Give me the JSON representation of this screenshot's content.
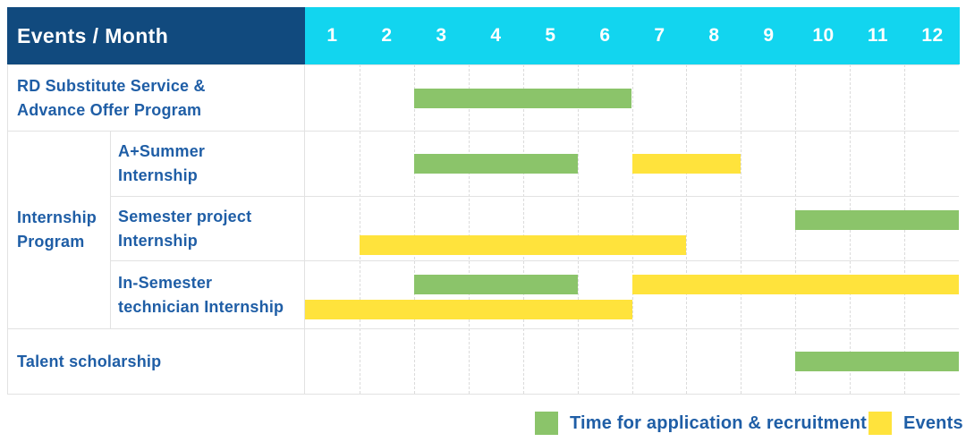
{
  "palette": {
    "header_navy": "#114A7E",
    "header_cyan": "#12D5EF",
    "header_text": "#FFFFFF",
    "text_blue": "#1F5EA6",
    "bar_green": "#8BC46A",
    "bar_yellow": "#FFE33C",
    "row_border": "#E2E2E2",
    "grid_line": "#DBDBDB"
  },
  "header": {
    "label": "Events / Month",
    "months": [
      "1",
      "2",
      "3",
      "4",
      "5",
      "6",
      "7",
      "8",
      "9",
      "10",
      "11",
      "12"
    ]
  },
  "group": {
    "label_lines": [
      "Internship",
      "Program"
    ]
  },
  "rows": [
    {
      "id": "rd-substitute-service",
      "label_lines": [
        "RD Substitute Service &",
        "Advance Offer Program"
      ],
      "in_group": false,
      "bars": [
        {
          "type": "recruitment",
          "color": "green",
          "start_month": 3,
          "end_month": 6,
          "lane": "center"
        }
      ]
    },
    {
      "id": "a-plus-summer-internship",
      "label_lines": [
        "A+Summer",
        "Internship"
      ],
      "in_group": true,
      "bars": [
        {
          "type": "recruitment",
          "color": "green",
          "start_month": 3,
          "end_month": 5,
          "lane": "center"
        },
        {
          "type": "event",
          "color": "yellow",
          "start_month": 7,
          "end_month": 8,
          "lane": "center"
        }
      ]
    },
    {
      "id": "semester-project-internship",
      "label_lines": [
        "Semester project",
        "Internship"
      ],
      "in_group": true,
      "bars": [
        {
          "type": "recruitment",
          "color": "green",
          "start_month": 10,
          "end_month": 12,
          "lane": "top"
        },
        {
          "type": "event",
          "color": "yellow",
          "start_month": 2,
          "end_month": 7,
          "lane": "bottom"
        }
      ]
    },
    {
      "id": "in-semester-technician-internship",
      "label_lines": [
        "In-Semester",
        "technician Internship"
      ],
      "in_group": true,
      "bars": [
        {
          "type": "recruitment",
          "color": "green",
          "start_month": 3,
          "end_month": 5,
          "lane": "top"
        },
        {
          "type": "event",
          "color": "yellow",
          "start_month": 7,
          "end_month": 12,
          "lane": "top"
        },
        {
          "type": "event",
          "color": "yellow",
          "start_month": 1,
          "end_month": 6,
          "lane": "bottom"
        }
      ]
    },
    {
      "id": "talent-scholarship",
      "label_lines": [
        "Talent scholarship"
      ],
      "in_group": false,
      "bars": [
        {
          "type": "recruitment",
          "color": "green",
          "start_month": 10,
          "end_month": 12,
          "lane": "center"
        }
      ]
    }
  ],
  "legend": {
    "items": [
      {
        "color": "green",
        "label": "Time for application & recruitment"
      },
      {
        "color": "yellow",
        "label": "Events"
      }
    ]
  },
  "chart_data": {
    "type": "bar",
    "subtype": "gantt-schedule",
    "title": "Events / Month",
    "x_axis": {
      "label": "Month",
      "ticks": [
        1,
        2,
        3,
        4,
        5,
        6,
        7,
        8,
        9,
        10,
        11,
        12
      ],
      "range": [
        1,
        12
      ]
    },
    "legend_position": "bottom-right",
    "grid": "dashed-vertical-month-lines",
    "rows": [
      "RD Substitute Service & Advance Offer Program",
      "A+Summer Internship",
      "Semester project Internship",
      "In-Semester technician Internship",
      "Talent scholarship"
    ],
    "row_groups": [
      {
        "group": "Internship Program",
        "rows": [
          "A+Summer Internship",
          "Semester project Internship",
          "In-Semester technician Internship"
        ]
      }
    ],
    "series": [
      {
        "name": "Time for application & recruitment",
        "color": "#8BC46A",
        "spans": [
          {
            "row": "RD Substitute Service & Advance Offer Program",
            "start_month": 3,
            "end_month": 6
          },
          {
            "row": "A+Summer Internship",
            "start_month": 3,
            "end_month": 5
          },
          {
            "row": "Semester project Internship",
            "start_month": 10,
            "end_month": 12
          },
          {
            "row": "In-Semester technician Internship",
            "start_month": 3,
            "end_month": 5
          },
          {
            "row": "Talent scholarship",
            "start_month": 10,
            "end_month": 12
          }
        ]
      },
      {
        "name": "Events",
        "color": "#FFE33C",
        "spans": [
          {
            "row": "A+Summer Internship",
            "start_month": 7,
            "end_month": 8
          },
          {
            "row": "Semester project Internship",
            "start_month": 2,
            "end_month": 7
          },
          {
            "row": "In-Semester technician Internship",
            "start_month": 1,
            "end_month": 6
          },
          {
            "row": "In-Semester technician Internship",
            "start_month": 7,
            "end_month": 12
          }
        ]
      }
    ]
  }
}
